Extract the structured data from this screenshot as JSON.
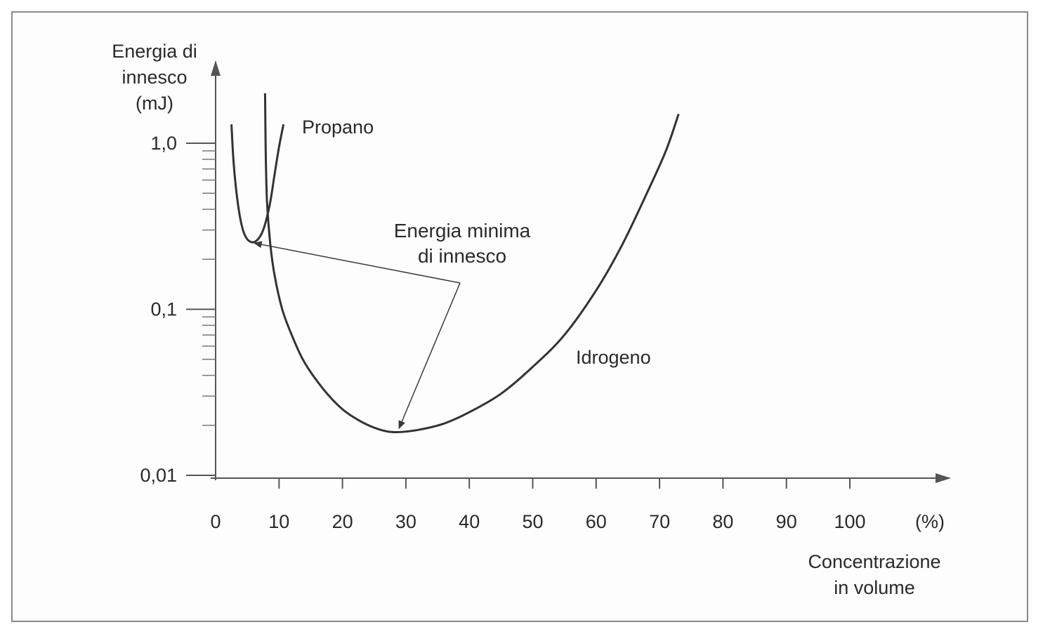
{
  "chart_data": {
    "type": "line",
    "title": "",
    "ylabel": [
      "Energia di",
      "innesco",
      "(mJ)"
    ],
    "xlabel": [
      "Concentrazione",
      "in volume"
    ],
    "x_unit": "(%)",
    "y_scale": "log",
    "ylim": [
      0.01,
      1.6
    ],
    "xlim": [
      0,
      115
    ],
    "x_ticks": [
      {
        "value": 0,
        "label": "0"
      },
      {
        "value": 10,
        "label": "10"
      },
      {
        "value": 20,
        "label": "20"
      },
      {
        "value": 30,
        "label": "30"
      },
      {
        "value": 40,
        "label": "40"
      },
      {
        "value": 50,
        "label": "50"
      },
      {
        "value": 60,
        "label": "60"
      },
      {
        "value": 70,
        "label": "70"
      },
      {
        "value": 80,
        "label": "80"
      },
      {
        "value": 90,
        "label": "90"
      },
      {
        "value": 100,
        "label": "100"
      }
    ],
    "y_ticks": [
      {
        "value": 1.0,
        "label": "1,0"
      },
      {
        "value": 0.1,
        "label": "0,1"
      },
      {
        "value": 0.01,
        "label": "0,01"
      }
    ],
    "series": [
      {
        "name": "Propano",
        "x": [
          2.5,
          2.8,
          3.3,
          3.9,
          4.6,
          5.5,
          6.5,
          7.5,
          8.5,
          9.3,
          10.0,
          10.7
        ],
        "y": [
          1.3,
          0.8,
          0.5,
          0.35,
          0.28,
          0.255,
          0.26,
          0.3,
          0.42,
          0.65,
          0.95,
          1.3
        ]
      },
      {
        "name": "Idrogeno",
        "x": [
          7.8,
          7.9,
          8.1,
          8.6,
          9.3,
          10.5,
          12,
          14,
          17,
          20,
          23,
          26,
          28.5,
          32,
          36,
          40,
          45,
          50,
          55,
          60,
          64,
          68,
          71,
          73
        ],
        "y": [
          2.0,
          0.9,
          0.45,
          0.25,
          0.16,
          0.1,
          0.07,
          0.048,
          0.033,
          0.025,
          0.021,
          0.0188,
          0.0182,
          0.0188,
          0.0205,
          0.024,
          0.031,
          0.045,
          0.07,
          0.13,
          0.24,
          0.5,
          0.9,
          1.5
        ]
      }
    ],
    "annotations": {
      "energia_minima": [
        "Energia minima",
        "di innesco"
      ],
      "propano_min": {
        "x": 5.5,
        "y": 0.255
      },
      "idrogeno_min": {
        "x": 28.5,
        "y": 0.0182
      }
    }
  }
}
